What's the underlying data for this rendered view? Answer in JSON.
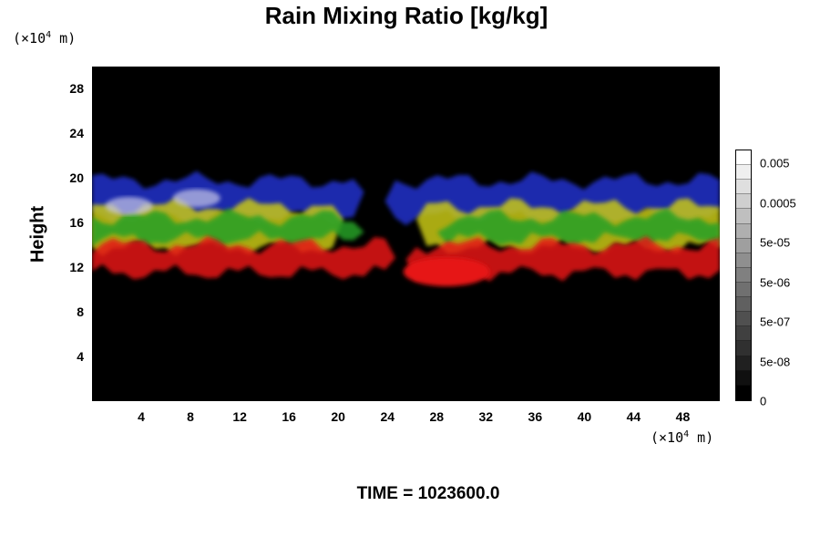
{
  "chart_data": {
    "type": "heatmap",
    "title": "Rain Mixing Ratio [kg/kg]",
    "xunit_prefix": "(×10",
    "xunit_exp": "4",
    "xunit_suffix": " m)",
    "yunit_prefix": "(×10",
    "yunit_exp": "4",
    "yunit_suffix": " m)",
    "ylabel": "Height",
    "xlim": [
      0,
      51
    ],
    "ylim": [
      0,
      30
    ],
    "xticks": [
      "4",
      "8",
      "12",
      "16",
      "20",
      "24",
      "28",
      "32",
      "36",
      "40",
      "44",
      "48"
    ],
    "yticks": [
      "4",
      "8",
      "12",
      "16",
      "20",
      "24",
      "28"
    ],
    "colorbar": {
      "labels": [
        "0.005",
        "0.0005",
        "5e-05",
        "5e-06",
        "5e-07",
        "5e-08",
        "0"
      ],
      "levels": 17,
      "low_color": "#000000",
      "high_color": "#ffffff"
    },
    "layers": [
      {
        "color": "#2233cc",
        "ymin": 16.5,
        "ymax": 19.8
      },
      {
        "color": "#c8c814",
        "ymin": 13.8,
        "ymax": 17.5
      },
      {
        "color": "#28a028",
        "ymin": 14.5,
        "ymax": 16.5
      },
      {
        "color": "#e61414",
        "ymin": 11.5,
        "ymax": 14.0
      }
    ],
    "time_label": "TIME = 1023600.0"
  }
}
